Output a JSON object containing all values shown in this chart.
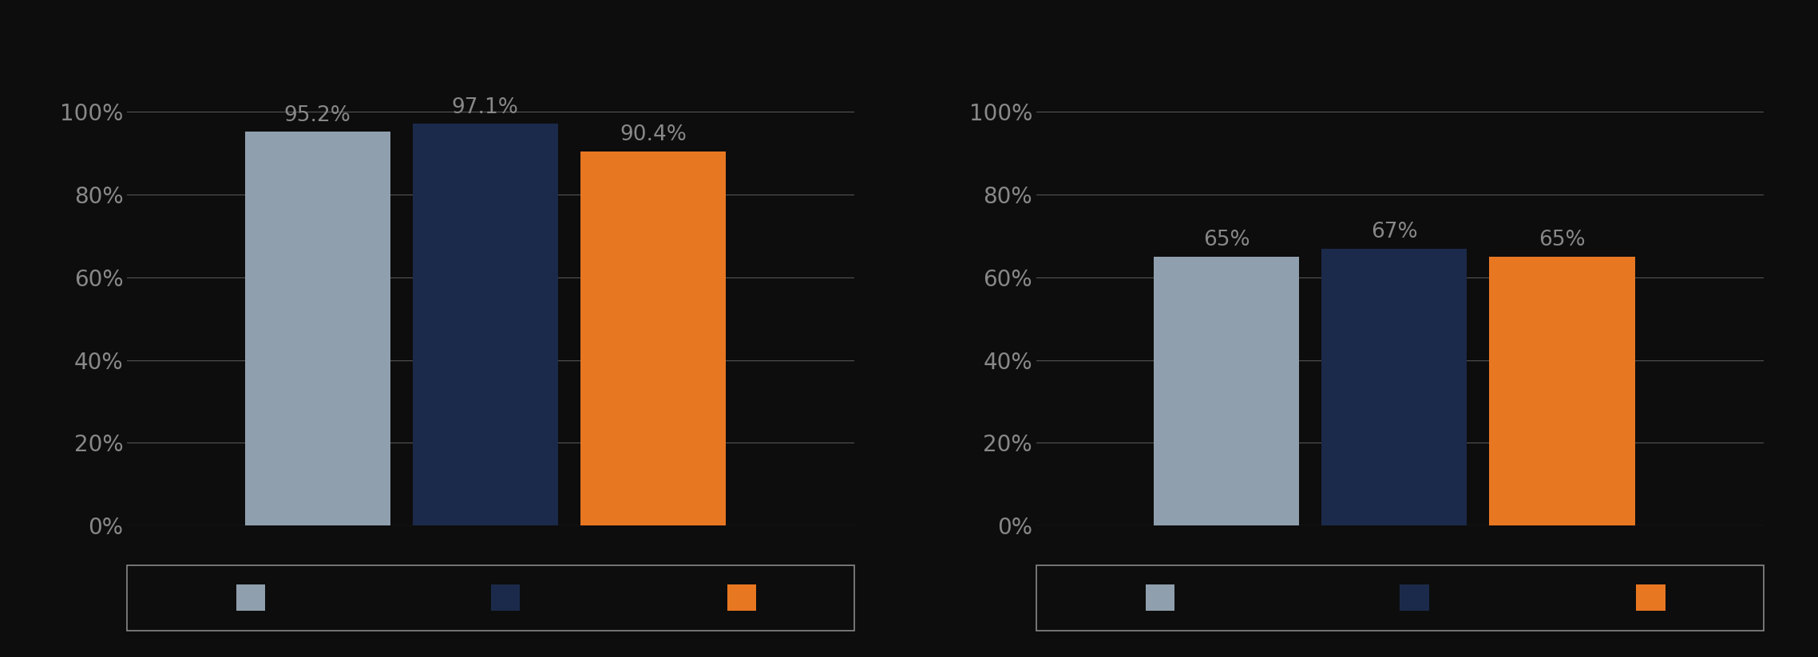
{
  "chart1": {
    "values": [
      95.2,
      97.1,
      90.4
    ],
    "labels": [
      "95.2%",
      "97.1%",
      "90.4%"
    ]
  },
  "chart2": {
    "values": [
      65,
      67,
      65
    ],
    "labels": [
      "65%",
      "67%",
      "65%"
    ]
  },
  "colors": [
    "#8f9fae",
    "#1b2a4a",
    "#e87722"
  ],
  "bar_width": 0.13,
  "ylim": [
    0,
    100
  ],
  "yticks": [
    0,
    20,
    40,
    60,
    80,
    100
  ],
  "yticklabels": [
    "0%",
    "20%",
    "40%",
    "60%",
    "80%",
    "100%"
  ],
  "background_color": "#0d0d0d",
  "text_color": "#888888",
  "grid_color": "#555555",
  "tick_fontsize": 20,
  "annotation_fontsize": 19,
  "legend_box_color": "#888888",
  "x_positions": [
    0.42,
    0.57,
    0.72
  ]
}
